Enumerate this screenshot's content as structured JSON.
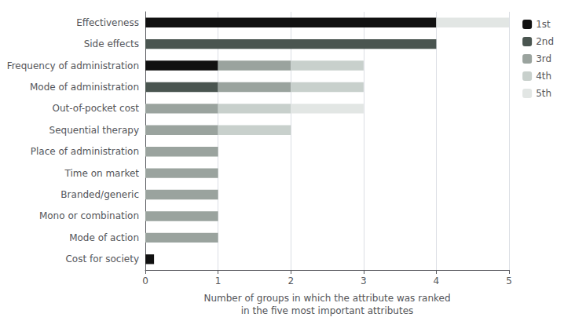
{
  "chart_data": {
    "type": "bar",
    "orientation": "horizontal",
    "stacked": true,
    "xlabel": "Number of groups in which the attribute was ranked\nin the five most important attributes",
    "categories": [
      "Effectiveness",
      "Side effects",
      "Frequency of administration",
      "Mode of administration",
      "Out-of-pocket cost",
      "Sequential therapy",
      "Place of administration",
      "Time on market",
      "Branded/generic",
      "Mono or combination",
      "Mode of action",
      "Cost for society"
    ],
    "series": [
      {
        "name": "1st",
        "color": "#111111",
        "values": [
          4,
          0,
          1,
          0,
          0,
          0,
          0,
          0,
          0,
          0,
          0,
          0.12
        ]
      },
      {
        "name": "2nd",
        "color": "#4a5550",
        "values": [
          0,
          4,
          0,
          1,
          0,
          0,
          0,
          0,
          0,
          0,
          0,
          0
        ]
      },
      {
        "name": "3rd",
        "color": "#9aa39e",
        "values": [
          0,
          0,
          1,
          1,
          1,
          1,
          1,
          1,
          1,
          1,
          1,
          0
        ]
      },
      {
        "name": "4th",
        "color": "#c8d0cc",
        "values": [
          0,
          0,
          1,
          1,
          1,
          1,
          0,
          0,
          0,
          0,
          0,
          0
        ]
      },
      {
        "name": "5th",
        "color": "#e2e6e4",
        "values": [
          1,
          0,
          0,
          0,
          1,
          0,
          0,
          0,
          0,
          0,
          0,
          0
        ]
      }
    ],
    "xlim": [
      0,
      5
    ],
    "xticks": [
      0,
      1,
      2,
      3,
      4,
      5
    ],
    "grid": true,
    "legend": "right"
  }
}
